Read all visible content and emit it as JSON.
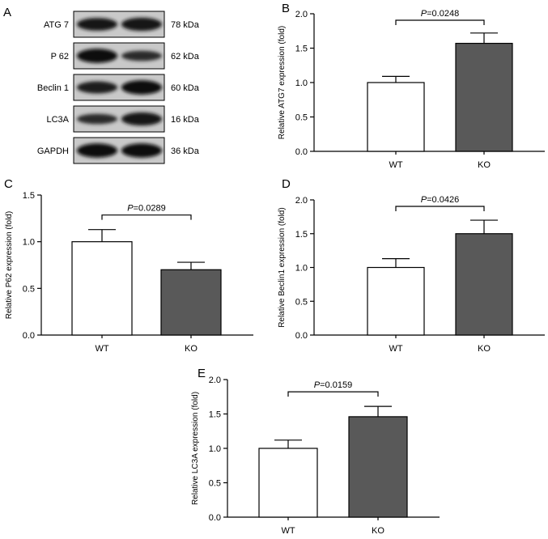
{
  "colors": {
    "wt_fill": "#ffffff",
    "ko_fill": "#595959",
    "stroke": "#000000"
  },
  "blot": {
    "letter": "A",
    "rows": [
      {
        "protein": "ATG 7",
        "size": "78 kDa",
        "wt_intensity": 0.8,
        "ko_intensity": 0.85
      },
      {
        "protein": "P 62",
        "size": "62 kDa",
        "wt_intensity": 0.95,
        "ko_intensity": 0.55
      },
      {
        "protein": "Beclin 1",
        "size": "60 kDa",
        "wt_intensity": 0.75,
        "ko_intensity": 0.95
      },
      {
        "protein": "LC3A",
        "size": "16 kDa",
        "wt_intensity": 0.55,
        "ko_intensity": 0.85
      },
      {
        "protein": "GAPDH",
        "size": "36 kDa",
        "wt_intensity": 0.95,
        "ko_intensity": 0.95
      }
    ]
  },
  "chart_data": [
    {
      "panel": "B",
      "type": "bar",
      "categories": [
        "WT",
        "KO"
      ],
      "values": [
        1.0,
        1.57
      ],
      "errors": [
        0.09,
        0.15
      ],
      "ylabel": "Relative ATG7 expression (fold)",
      "ylim": [
        0,
        2.0
      ],
      "yticks": [
        "0.0",
        "0.5",
        "1.0",
        "1.5",
        "2.0"
      ],
      "annotation": {
        "p_symbol": "P",
        "p_text": "=0.0248"
      }
    },
    {
      "panel": "C",
      "type": "bar",
      "categories": [
        "WT",
        "KO"
      ],
      "values": [
        1.0,
        0.7
      ],
      "errors": [
        0.13,
        0.08
      ],
      "ylabel": "Relative P62 expression (fold)",
      "ylim": [
        0,
        1.5
      ],
      "yticks": [
        "0.0",
        "0.5",
        "1.0",
        "1.5"
      ],
      "annotation": {
        "p_symbol": "P",
        "p_text": "=0.0289"
      }
    },
    {
      "panel": "D",
      "type": "bar",
      "categories": [
        "WT",
        "KO"
      ],
      "values": [
        1.0,
        1.5
      ],
      "errors": [
        0.13,
        0.2
      ],
      "ylabel": "Relative Beclin1 expression (fold)",
      "ylim": [
        0,
        2.0
      ],
      "yticks": [
        "0.0",
        "0.5",
        "1.0",
        "1.5",
        "2.0"
      ],
      "annotation": {
        "p_symbol": "P",
        "p_text": "=0.0426"
      }
    },
    {
      "panel": "E",
      "type": "bar",
      "categories": [
        "WT",
        "KO"
      ],
      "values": [
        1.0,
        1.46
      ],
      "errors": [
        0.12,
        0.15
      ],
      "ylabel": "Relative LC3A expression (fold)",
      "ylim": [
        0,
        2.0
      ],
      "yticks": [
        "0.0",
        "0.5",
        "1.0",
        "1.5",
        "2.0"
      ],
      "annotation": {
        "p_symbol": "P",
        "p_text": "=0.0159"
      }
    }
  ]
}
